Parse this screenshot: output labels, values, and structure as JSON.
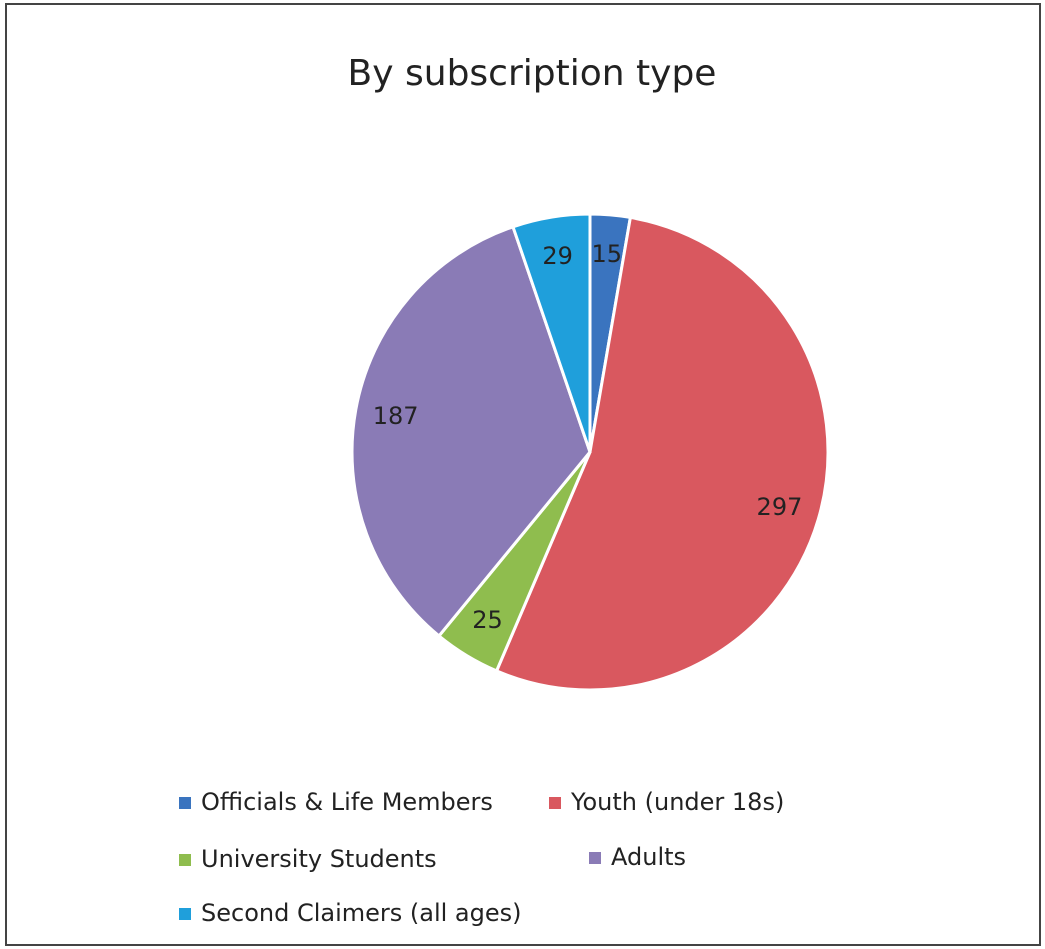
{
  "chart_data": {
    "type": "pie",
    "title": "By subscription type",
    "categories": [
      "Officials & Life Members",
      "Youth (under 18s)",
      "University Students",
      "Adults",
      "Second Claimers (all ages)"
    ],
    "values": [
      15,
      297,
      25,
      187,
      29
    ],
    "colors": [
      "#3a74bf",
      "#d9585f",
      "#8fbd4e",
      "#8a7bb6",
      "#1f9fdb"
    ],
    "legend": "bottom"
  }
}
